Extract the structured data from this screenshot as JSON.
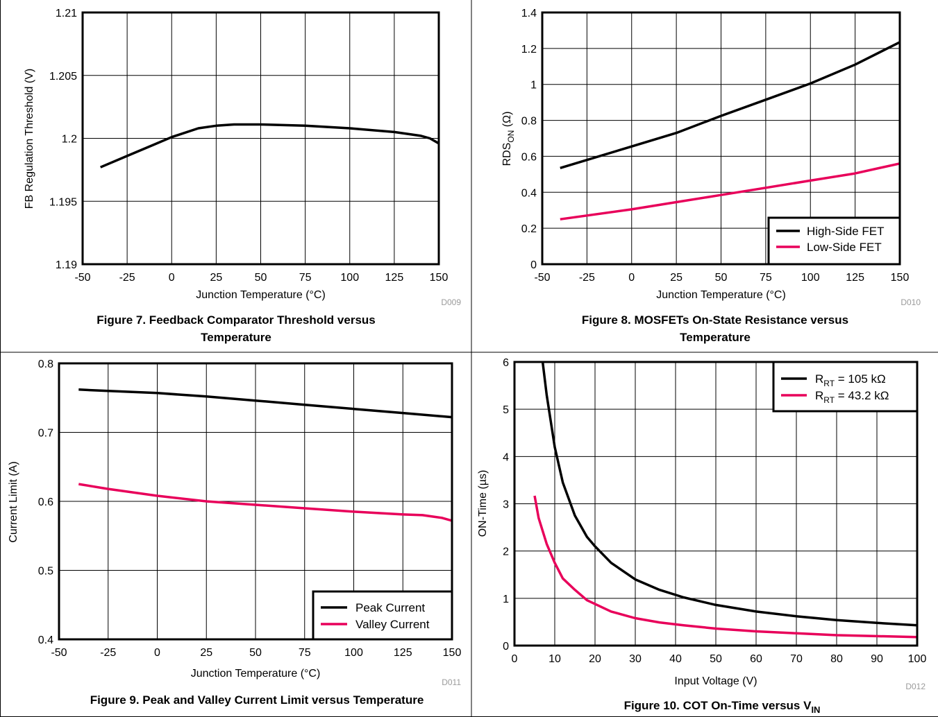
{
  "colors": {
    "series_black": "#000000",
    "series_pink": "#e8005a"
  },
  "chart_data": [
    {
      "type": "line",
      "xlabel": "Junction Temperature (°C)",
      "ylabel": "FB Regulation Threshold (V)",
      "xlim": [
        -50,
        150
      ],
      "ylim": [
        1.19,
        1.21
      ],
      "xticks": [
        "-50",
        "-25",
        "0",
        "25",
        "50",
        "75",
        "100",
        "125",
        "150"
      ],
      "yticks": [
        "1.19",
        "1.195",
        "1.2",
        "1.205",
        "1.21"
      ],
      "grid": true,
      "code": "D009",
      "caption": [
        "Figure 7. Feedback Comparator Threshold versus",
        "Temperature"
      ],
      "series": [
        {
          "color": "#000000",
          "x": [
            -40,
            -25,
            -10,
            0,
            15,
            25,
            35,
            50,
            75,
            100,
            125,
            140,
            145,
            150
          ],
          "y": [
            1.1977,
            1.1986,
            1.1995,
            1.2001,
            1.2008,
            1.201,
            1.2011,
            1.2011,
            1.201,
            1.2008,
            1.2005,
            1.2002,
            1.2,
            1.1996
          ]
        }
      ]
    },
    {
      "type": "line",
      "xlabel": "Junction Temperature (°C)",
      "ylabel": "RDSON (Ω)",
      "xlim": [
        -50,
        150
      ],
      "ylim": [
        0,
        1.4
      ],
      "xticks": [
        "-50",
        "-25",
        "0",
        "25",
        "50",
        "75",
        "100",
        "125",
        "150"
      ],
      "yticks": [
        "0",
        "0.2",
        "0.4",
        "0.6",
        "0.8",
        "1",
        "1.2",
        "1.4"
      ],
      "grid": true,
      "code": "D010",
      "caption": [
        "Figure 8. MOSFETs On-State Resistance versus",
        "Temperature"
      ],
      "legend": "bottom-right",
      "series": [
        {
          "name": "High-Side FET",
          "color": "#000000",
          "x": [
            -40,
            0,
            25,
            50,
            75,
            100,
            125,
            150
          ],
          "y": [
            0.535,
            0.655,
            0.73,
            0.825,
            0.915,
            1.005,
            1.11,
            1.235
          ]
        },
        {
          "name": "Low-Side FET",
          "color": "#e8005a",
          "x": [
            -40,
            0,
            25,
            50,
            75,
            100,
            125,
            150
          ],
          "y": [
            0.25,
            0.305,
            0.345,
            0.385,
            0.425,
            0.465,
            0.505,
            0.56
          ]
        }
      ]
    },
    {
      "type": "line",
      "xlabel": "Junction Temperature (°C)",
      "ylabel": "Current Limit (A)",
      "xlim": [
        -50,
        150
      ],
      "ylim": [
        0.4,
        0.8
      ],
      "xticks": [
        "-50",
        "-25",
        "0",
        "25",
        "50",
        "75",
        "100",
        "125",
        "150"
      ],
      "yticks": [
        "0.4",
        "0.5",
        "0.6",
        "0.7",
        "0.8"
      ],
      "grid": true,
      "code": "D011",
      "caption": [
        "Figure 9. Peak and Valley Current Limit versus Temperature"
      ],
      "legend": "bottom-right",
      "series": [
        {
          "name": "Peak Current",
          "color": "#000000",
          "x": [
            -40,
            -25,
            0,
            25,
            50,
            75,
            100,
            125,
            150
          ],
          "y": [
            0.762,
            0.76,
            0.757,
            0.752,
            0.746,
            0.74,
            0.734,
            0.728,
            0.722
          ]
        },
        {
          "name": "Valley Current",
          "color": "#e8005a",
          "x": [
            -40,
            -25,
            0,
            25,
            35,
            50,
            75,
            100,
            125,
            135,
            140,
            145,
            150
          ],
          "y": [
            0.625,
            0.618,
            0.608,
            0.6,
            0.598,
            0.595,
            0.59,
            0.585,
            0.581,
            0.58,
            0.578,
            0.576,
            0.572
          ]
        }
      ]
    },
    {
      "type": "line",
      "xlabel": "Input Voltage (V)",
      "ylabel": "ON-Time (µs)",
      "xlim": [
        0,
        100
      ],
      "ylim": [
        0,
        6
      ],
      "xticks": [
        "0",
        "10",
        "20",
        "30",
        "40",
        "50",
        "60",
        "70",
        "80",
        "90",
        "100"
      ],
      "yticks": [
        "0",
        "1",
        "2",
        "3",
        "4",
        "5",
        "6"
      ],
      "grid": true,
      "code": "D012",
      "caption": [
        "Figure 10. COT On-Time versus V",
        "IN"
      ],
      "legend": "top-right",
      "series": [
        {
          "name": "RRT = 105 kΩ",
          "name_parts": [
            "R",
            "RT",
            " = 105 kΩ"
          ],
          "color": "#000000",
          "x": [
            7,
            8,
            10,
            12,
            15,
            18,
            20,
            24,
            30,
            36,
            42,
            50,
            60,
            70,
            80,
            90,
            100
          ],
          "y": [
            6.0,
            5.3,
            4.2,
            3.45,
            2.75,
            2.3,
            2.1,
            1.75,
            1.4,
            1.18,
            1.02,
            0.86,
            0.72,
            0.62,
            0.54,
            0.48,
            0.43
          ]
        },
        {
          "name": "RRT = 43.2 kΩ",
          "name_parts": [
            "R",
            "RT",
            " = 43.2 kΩ"
          ],
          "color": "#e8005a",
          "x": [
            5,
            6,
            8,
            10,
            12,
            15,
            18,
            24,
            30,
            36,
            42,
            50,
            60,
            70,
            80,
            90,
            100
          ],
          "y": [
            3.17,
            2.7,
            2.15,
            1.75,
            1.42,
            1.18,
            0.96,
            0.72,
            0.58,
            0.49,
            0.43,
            0.36,
            0.3,
            0.26,
            0.22,
            0.2,
            0.18
          ]
        }
      ]
    }
  ]
}
